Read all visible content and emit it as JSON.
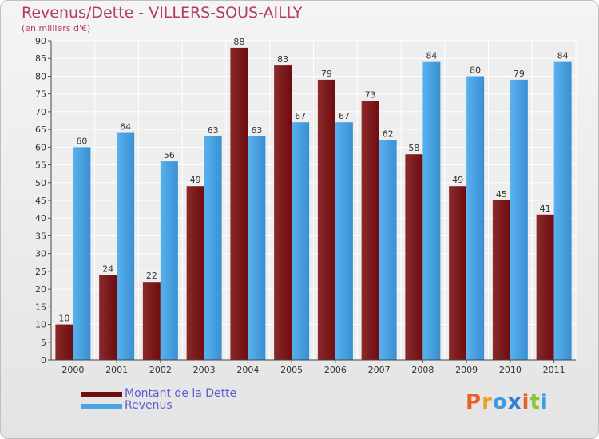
{
  "chart_data": {
    "type": "bar",
    "title": "Revenus/Dette - VILLERS-SOUS-AILLY",
    "subtitle": "(en milliers d'€)",
    "categories": [
      "2000",
      "2001",
      "2002",
      "2003",
      "2004",
      "2005",
      "2006",
      "2007",
      "2008",
      "2009",
      "2010",
      "2011"
    ],
    "series": [
      {
        "name": "Montant de la Dette",
        "values": [
          10,
          24,
          22,
          49,
          88,
          83,
          79,
          73,
          58,
          49,
          45,
          41
        ]
      },
      {
        "name": "Revenus",
        "values": [
          60,
          64,
          56,
          63,
          63,
          67,
          67,
          62,
          84,
          80,
          79,
          84
        ]
      }
    ],
    "ylim": [
      0,
      90
    ],
    "yticks": [
      0,
      5,
      10,
      15,
      20,
      25,
      30,
      35,
      40,
      45,
      50,
      55,
      60,
      65,
      70,
      75,
      80,
      85,
      90
    ],
    "grid": true,
    "legend_position": "bottom-left"
  },
  "colors": {
    "debt": "#6e0c0f",
    "revenue": "#4aa3e4",
    "title": "#b43a6a",
    "legend_text": "#5b5bd6"
  },
  "brand": {
    "text": "Proxiti",
    "letter_colors": [
      "#e8602a",
      "#f0a020",
      "#3d9be0",
      "#2f7fd0",
      "#e8602a",
      "#8cc63f",
      "#3d9be0"
    ]
  }
}
